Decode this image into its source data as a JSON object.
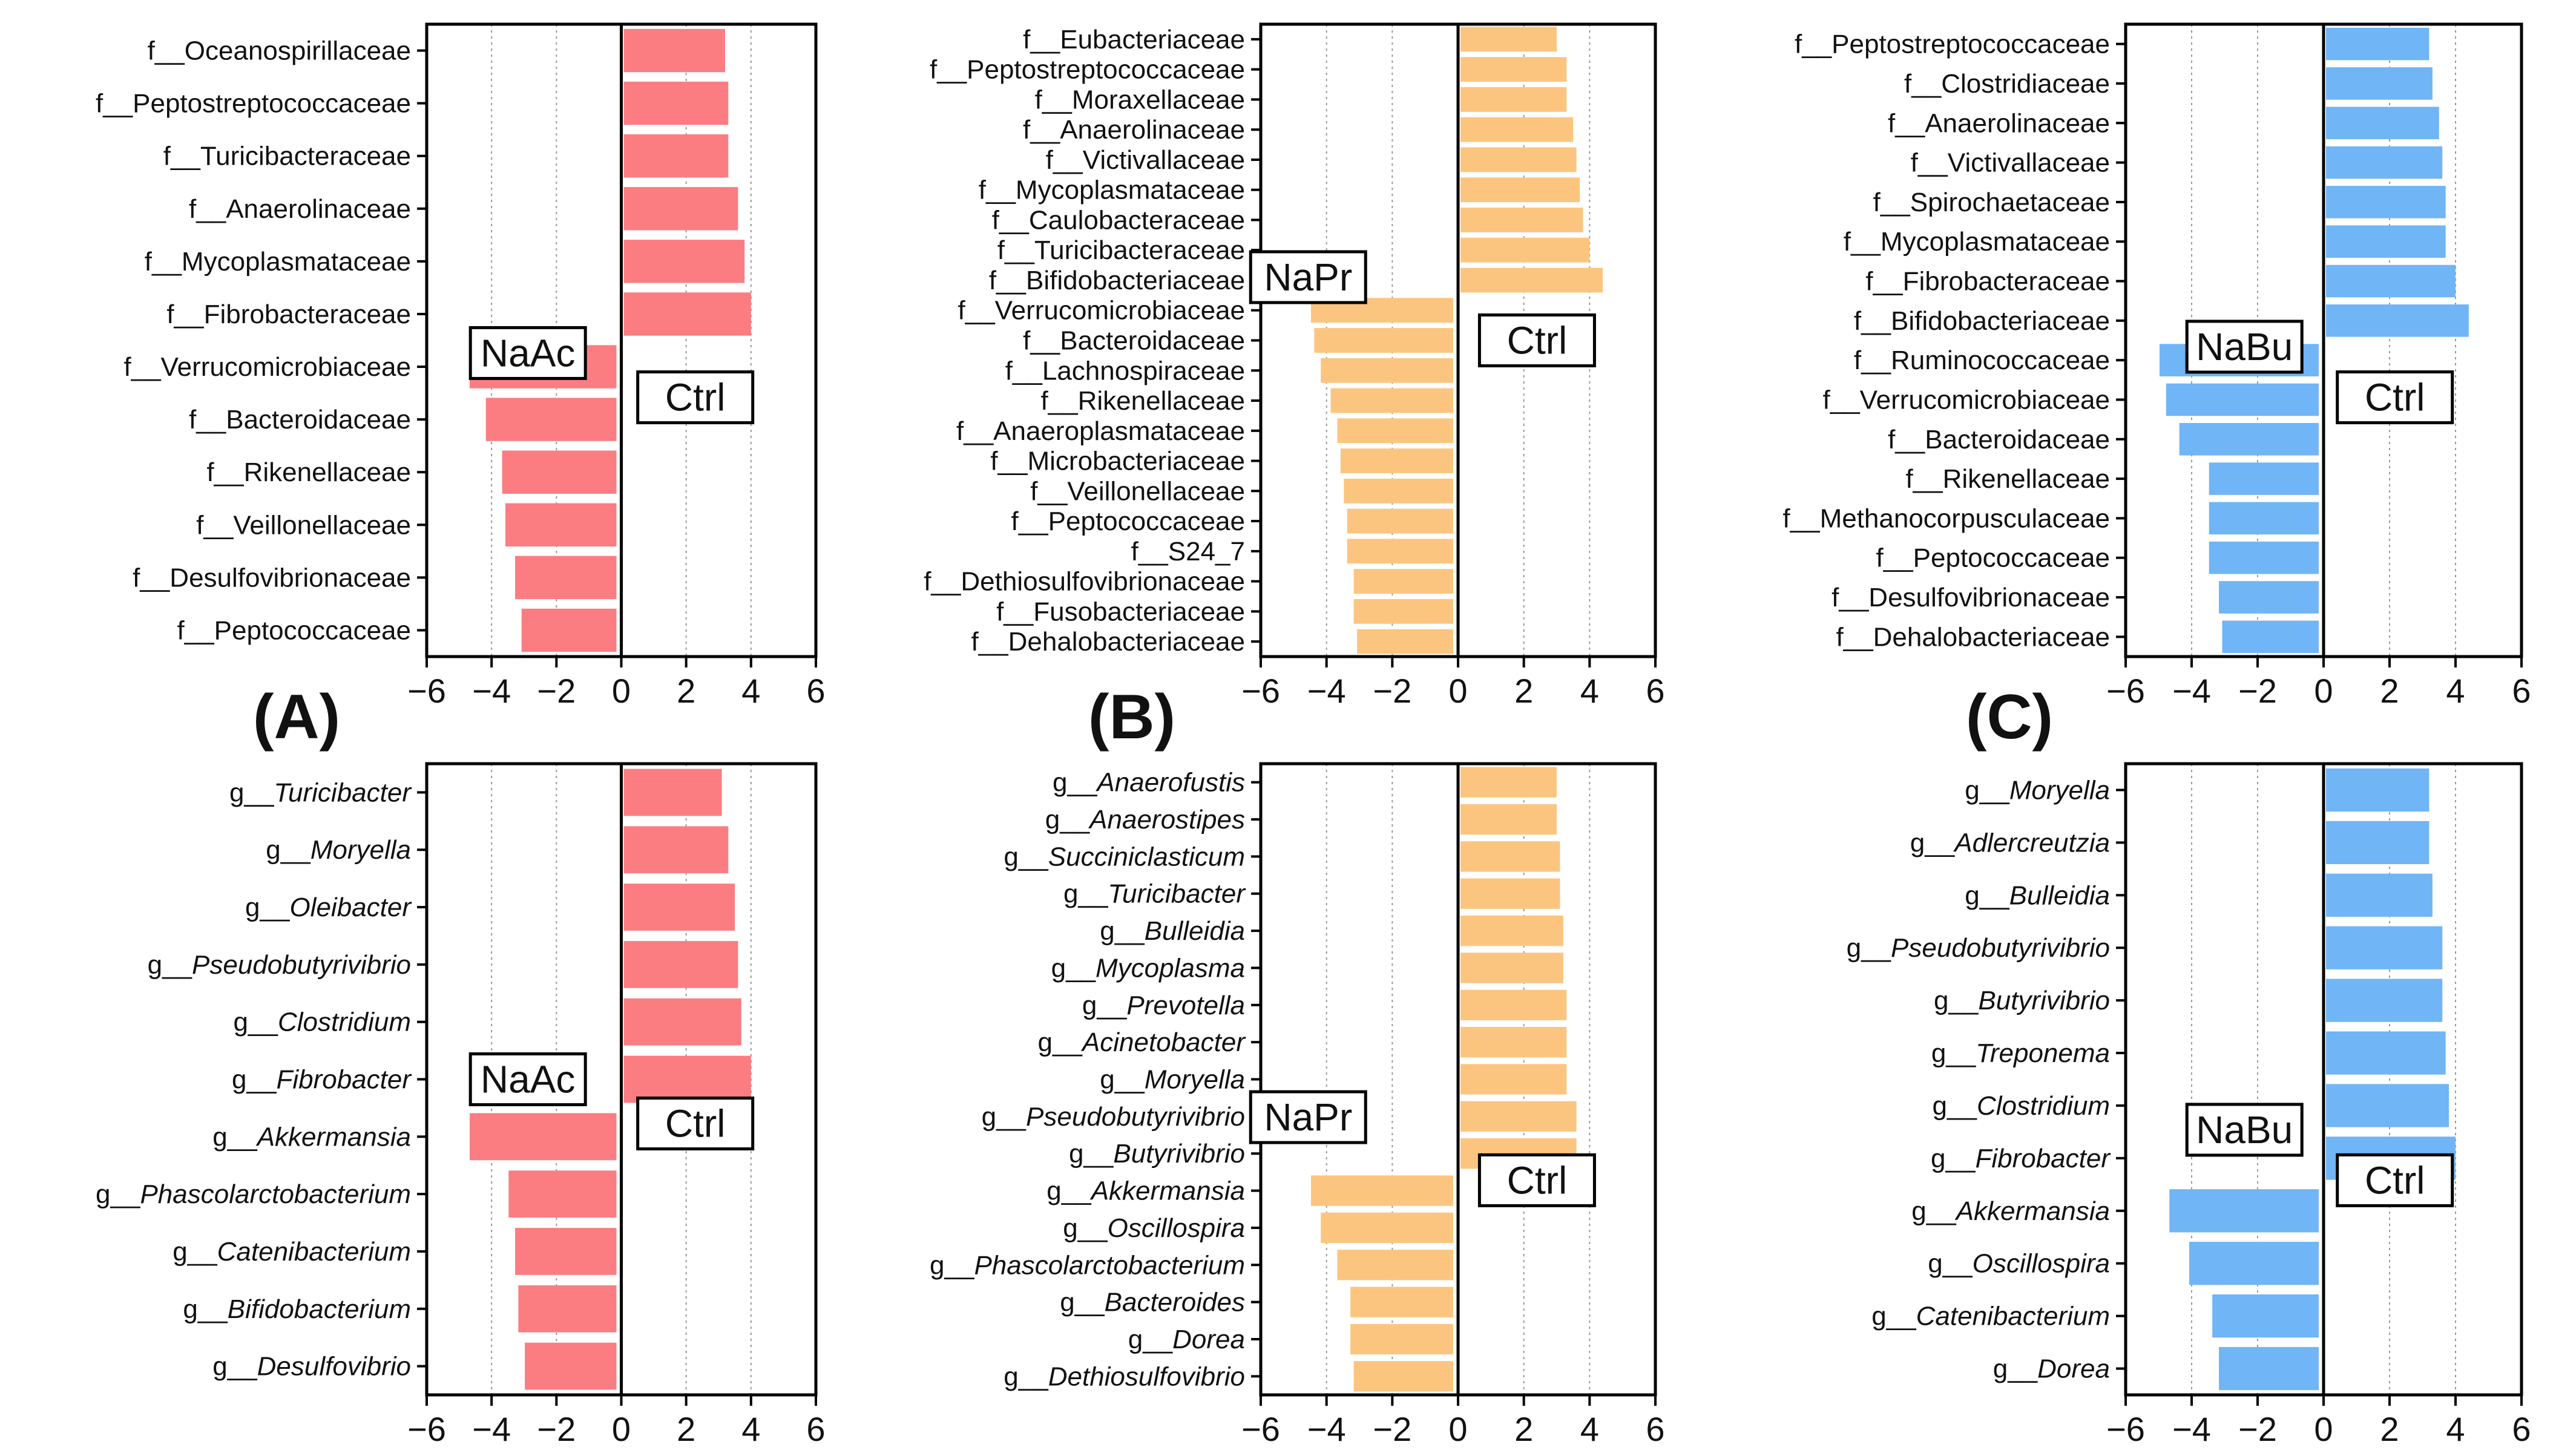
{
  "figure": {
    "panel_labels": [
      "(A)",
      "(B)",
      "(C)"
    ]
  },
  "chart_data": [
    {
      "id": "A-family",
      "type": "bar",
      "orientation": "horizontal",
      "level": "family",
      "title": "",
      "xlabel": "",
      "ylabel": "",
      "xlim": [
        -6,
        6
      ],
      "xticks": [
        "−6",
        "−4",
        "−2",
        "0",
        "2",
        "4",
        "6"
      ],
      "bar_color": "#fb7d81",
      "left_group": "NaAc",
      "right_group": "Ctrl",
      "categories": [
        "f__Oceanospirillaceae",
        "f__Peptostreptococcaceae",
        "f__Turicibacteraceae",
        "f__Anaerolinaceae",
        "f__Mycoplasmataceae",
        "f__Fibrobacteraceae",
        "f__Verrucomicrobiaceae",
        "f__Bacteroidaceae",
        "f__Rikenellaceae",
        "f__Veillonellaceae",
        "f__Desulfovibrionaceae",
        "f__Peptococcaceae"
      ],
      "italic": false,
      "values": [
        3.2,
        3.3,
        3.3,
        3.6,
        3.8,
        4.0,
        -4.6,
        -4.1,
        -3.6,
        -3.5,
        -3.2,
        -3.0
      ]
    },
    {
      "id": "B-family",
      "type": "bar",
      "orientation": "horizontal",
      "level": "family",
      "title": "",
      "xlabel": "",
      "ylabel": "",
      "xlim": [
        -6,
        6
      ],
      "xticks": [
        "−6",
        "−4",
        "−2",
        "0",
        "2",
        "4",
        "6"
      ],
      "bar_color": "#fcc57f",
      "left_group": "NaPr",
      "right_group": "Ctrl",
      "categories": [
        "f__Eubacteriaceae",
        "f__Peptostreptococcaceae",
        "f__Moraxellaceae",
        "f__Anaerolinaceae",
        "f__Victivallaceae",
        "f__Mycoplasmataceae",
        "f__Caulobacteraceae",
        "f__Turicibacteraceae",
        "f__Bifidobacteriaceae",
        "f__Verrucomicrobiaceae",
        "f__Bacteroidaceae",
        "f__Lachnospiraceae",
        "f__Rikenellaceae",
        "f__Anaeroplasmataceae",
        "f__Microbacteriaceae",
        "f__Veillonellaceae",
        "f__Peptococcaceae",
        "f__S24_7",
        "f__Dethiosulfovibrionaceae",
        "f__Fusobacteriaceae",
        "f__Dehalobacteriaceae"
      ],
      "italic": false,
      "values": [
        3.0,
        3.3,
        3.3,
        3.5,
        3.6,
        3.7,
        3.8,
        4.0,
        4.4,
        -4.4,
        -4.3,
        -4.1,
        -3.8,
        -3.6,
        -3.5,
        -3.4,
        -3.3,
        -3.3,
        -3.1,
        -3.1,
        -3.0
      ]
    },
    {
      "id": "C-family",
      "type": "bar",
      "orientation": "horizontal",
      "level": "family",
      "title": "",
      "xlabel": "",
      "ylabel": "",
      "xlim": [
        -6,
        6
      ],
      "xticks": [
        "−6",
        "−4",
        "−2",
        "0",
        "2",
        "4",
        "6"
      ],
      "bar_color": "#70b5f6",
      "left_group": "NaBu",
      "right_group": "Ctrl",
      "categories": [
        "f__Peptostreptococcaceae",
        "f__Clostridiaceae",
        "f__Anaerolinaceae",
        "f__Victivallaceae",
        "f__Spirochaetaceae",
        "f__Mycoplasmataceae",
        "f__Fibrobacteraceae",
        "f__Bifidobacteriaceae",
        "f__Ruminococcaceae",
        "f__Verrucomicrobiaceae",
        "f__Bacteroidaceae",
        "f__Rikenellaceae",
        "f__Methanocorpusculaceae",
        "f__Peptococcaceae",
        "f__Desulfovibrionaceae",
        "f__Dehalobacteriaceae"
      ],
      "italic": false,
      "values": [
        3.2,
        3.3,
        3.5,
        3.6,
        3.7,
        3.7,
        4.0,
        4.4,
        -4.9,
        -4.7,
        -4.3,
        -3.4,
        -3.4,
        -3.4,
        -3.1,
        -3.0
      ]
    },
    {
      "id": "A-genus",
      "type": "bar",
      "orientation": "horizontal",
      "level": "genus",
      "title": "",
      "xlabel": "",
      "ylabel": "",
      "xlim": [
        -6,
        6
      ],
      "xticks": [
        "−6",
        "−4",
        "−2",
        "0",
        "2",
        "4",
        "6"
      ],
      "bar_color": "#fb7d81",
      "left_group": "NaAc",
      "right_group": "Ctrl",
      "prefix": "g__",
      "categories": [
        "Turicibacter",
        "Moryella",
        "Oleibacter",
        "Pseudobutyrivibrio",
        "Clostridium",
        "Fibrobacter",
        "Akkermansia",
        "Phascolarctobacterium",
        "Catenibacterium",
        "Bifidobacterium",
        "Desulfovibrio"
      ],
      "italic": true,
      "values": [
        3.1,
        3.3,
        3.5,
        3.6,
        3.7,
        4.0,
        -4.6,
        -3.4,
        -3.2,
        -3.1,
        -2.9
      ]
    },
    {
      "id": "B-genus",
      "type": "bar",
      "orientation": "horizontal",
      "level": "genus",
      "title": "",
      "xlabel": "",
      "ylabel": "",
      "xlim": [
        -6,
        6
      ],
      "xticks": [
        "−6",
        "−4",
        "−2",
        "0",
        "2",
        "4",
        "6"
      ],
      "bar_color": "#fcc57f",
      "left_group": "NaPr",
      "right_group": "Ctrl",
      "prefix": "g__",
      "categories": [
        "Anaerofustis",
        "Anaerostipes",
        "Succiniclasticum",
        "Turicibacter",
        "Bulleidia",
        "Mycoplasma",
        "Prevotella",
        "Acinetobacter",
        "Moryella",
        "Pseudobutyrivibrio",
        "Butyrivibrio",
        "Akkermansia",
        "Oscillospira",
        "Phascolarctobacterium",
        "Bacteroides",
        "Dorea",
        "Dethiosulfovibrio"
      ],
      "italic": true,
      "values": [
        3.0,
        3.0,
        3.1,
        3.1,
        3.2,
        3.2,
        3.3,
        3.3,
        3.3,
        3.6,
        3.6,
        -4.4,
        -4.1,
        -3.6,
        -3.2,
        -3.2,
        -3.1
      ]
    },
    {
      "id": "C-genus",
      "type": "bar",
      "orientation": "horizontal",
      "level": "genus",
      "title": "",
      "xlabel": "",
      "ylabel": "",
      "xlim": [
        -6,
        6
      ],
      "xticks": [
        "−6",
        "−4",
        "−2",
        "0",
        "2",
        "4",
        "6"
      ],
      "bar_color": "#70b5f6",
      "left_group": "NaBu",
      "right_group": "Ctrl",
      "prefix": "g__",
      "categories": [
        "Moryella",
        "Adlercreutzia",
        "Bulleidia",
        "Pseudobutyrivibrio",
        "Butyrivibrio",
        "Treponema",
        "Clostridium",
        "Fibrobacter",
        "Akkermansia",
        "Oscillospira",
        "Catenibacterium",
        "Dorea"
      ],
      "italic": true,
      "values": [
        3.2,
        3.2,
        3.3,
        3.6,
        3.6,
        3.7,
        3.8,
        4.0,
        -4.6,
        -4.0,
        -3.3,
        -3.1
      ]
    }
  ]
}
